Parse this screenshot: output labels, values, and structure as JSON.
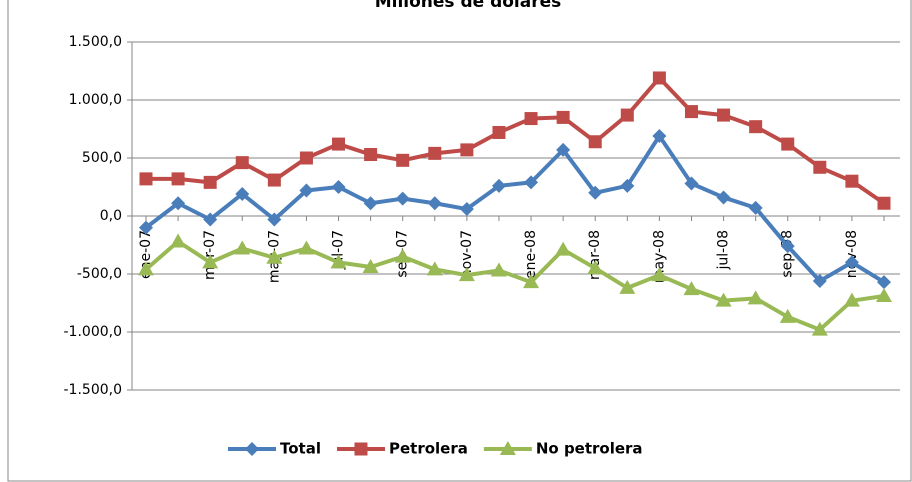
{
  "chart_data": {
    "type": "line",
    "title": "Millones de dólares",
    "categories": [
      "ene-07",
      null,
      "mar-07",
      null,
      "may-07",
      null,
      "jul-07",
      null,
      "sep-07",
      null,
      "nov-07",
      null,
      "ene-08",
      null,
      "mar-08",
      null,
      "may-08",
      null,
      "jul-08",
      null,
      "sep-08",
      null,
      "nov-08",
      null
    ],
    "series": [
      {
        "name": "Total",
        "color": "#4a7ebb",
        "marker": "diamond",
        "values": [
          -100,
          110,
          -30,
          190,
          -30,
          220,
          250,
          110,
          150,
          110,
          60,
          260,
          290,
          570,
          200,
          260,
          690,
          280,
          160,
          70,
          -260,
          -560,
          -400,
          -570
        ]
      },
      {
        "name": "Petrolera",
        "color": "#be4b48",
        "marker": "square",
        "values": [
          320,
          320,
          290,
          460,
          310,
          500,
          620,
          530,
          480,
          540,
          570,
          720,
          840,
          850,
          640,
          870,
          1190,
          900,
          870,
          770,
          620,
          420,
          300,
          110
        ]
      },
      {
        "name": "No petrolera",
        "color": "#98b954",
        "marker": "triangle",
        "values": [
          -460,
          -220,
          -400,
          -280,
          -360,
          -280,
          -400,
          -440,
          -350,
          -460,
          -510,
          -470,
          -570,
          -290,
          -450,
          -620,
          -510,
          -630,
          -730,
          -710,
          -870,
          -980,
          -730,
          -690
        ]
      }
    ],
    "ylim": [
      -1500,
      1500
    ],
    "yticks": [
      {
        "value": -1500,
        "label": "-1.500,0"
      },
      {
        "value": -1000,
        "label": "-1.000,0"
      },
      {
        "value": -500,
        "label": "-500,0"
      },
      {
        "value": 0,
        "label": "0,0"
      },
      {
        "value": 500,
        "label": "500,0"
      },
      {
        "value": 1000,
        "label": "1.000,0"
      },
      {
        "value": 1500,
        "label": "1.500,0"
      }
    ],
    "grid": true,
    "legend": "bottom"
  }
}
